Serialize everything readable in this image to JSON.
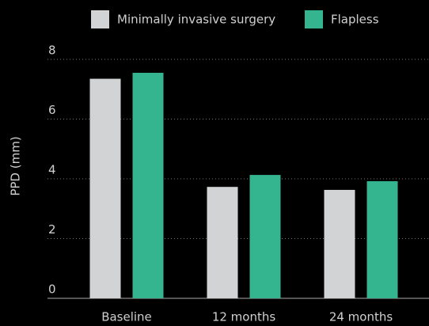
{
  "chart_data": {
    "type": "bar",
    "y_label": "PPD (mm)",
    "categories": [
      "Baseline",
      "12 months",
      "24 months"
    ],
    "series": [
      {
        "name": "Minimally invasive surgery",
        "color": "#d1d3d4",
        "values": [
          7.35,
          3.73,
          3.63
        ]
      },
      {
        "name": "Flapless",
        "color": "#35b490",
        "values": [
          7.55,
          4.13,
          3.92
        ]
      }
    ],
    "ylim": [
      0,
      8
    ],
    "yticks": [
      0,
      2,
      4,
      6,
      8
    ],
    "grid": true,
    "legend": "top"
  }
}
